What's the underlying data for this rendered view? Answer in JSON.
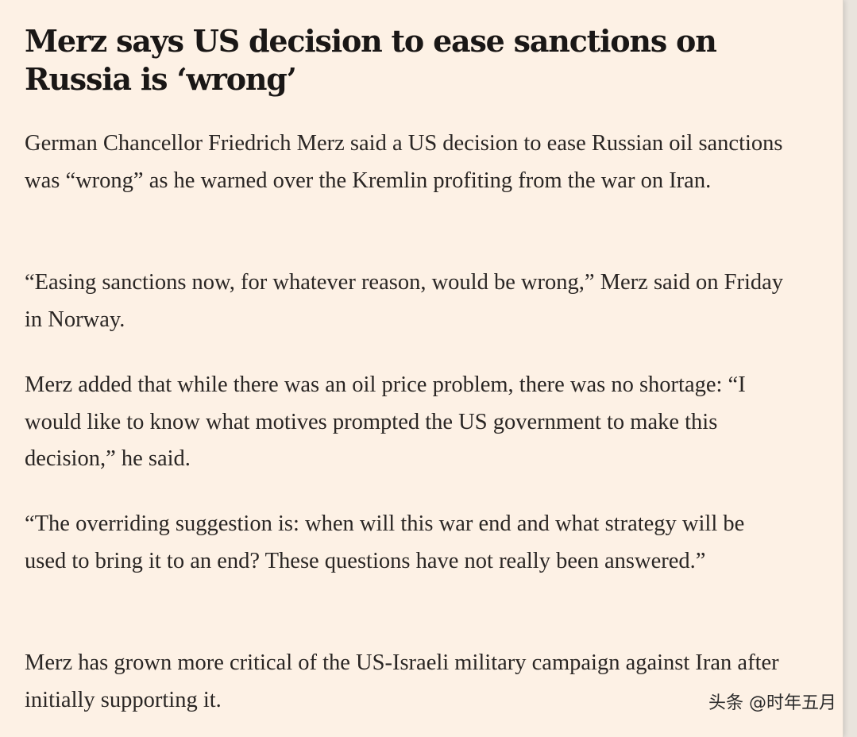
{
  "article": {
    "headline": "Merz says US decision to ease sanctions on Russia is ‘wrong’",
    "paragraphs": [
      "German Chancellor Friedrich Merz said a US decision to ease Russian oil sanctions was “wrong” as he warned over the Kremlin profiting from the war on Iran.",
      "“Easing sanctions now, for whatever reason, would be wrong,” Merz said on Friday in Norway.",
      "Merz added that while there was an oil price problem, there was no shortage: “I would like to know what motives prompted the US government to make this decision,” he said.",
      "“The overriding suggestion is: when will this war end and what strategy will be used to bring it to an end? These questions have not really been answered.”",
      "Merz has grown more critical of the US-Israeli military campaign against Iran after initially supporting it."
    ]
  },
  "watermark": {
    "text": "头条 @时年五月"
  },
  "colors": {
    "background": "#fdf1e5",
    "text": "#2a2624",
    "headline": "#1a1716"
  }
}
